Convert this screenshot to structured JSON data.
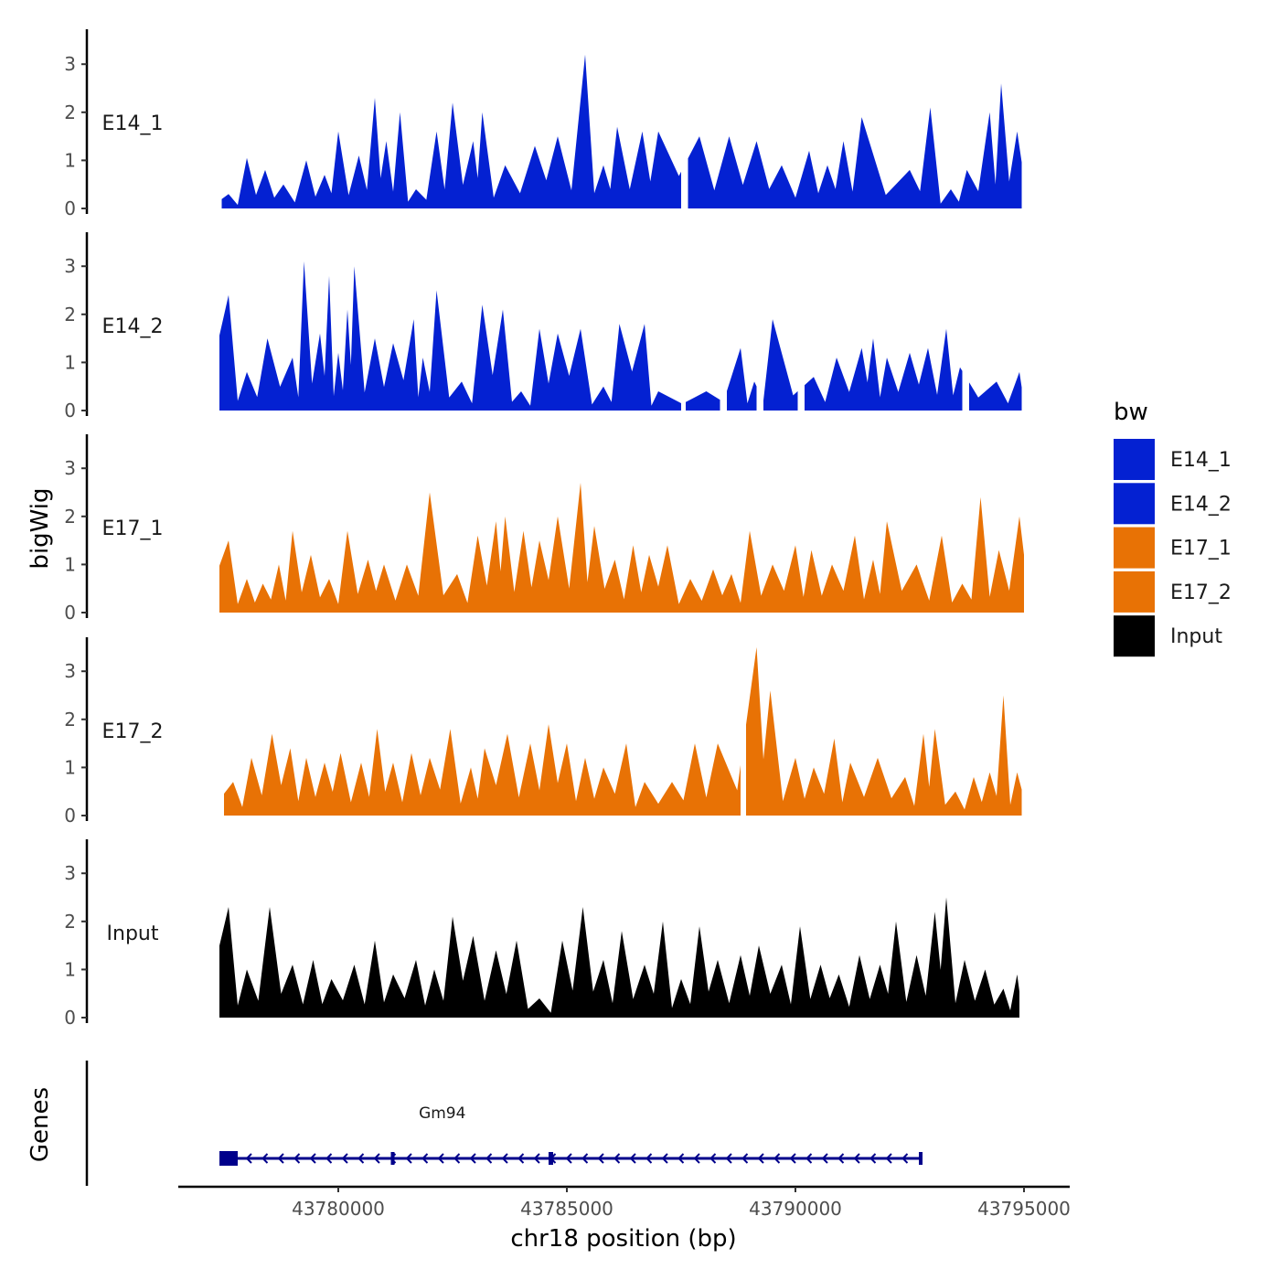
{
  "chart_data": {
    "type": "area",
    "xlabel": "chr18 position (bp)",
    "ylabel": "bigWig",
    "xlim": [
      43776500,
      43796000
    ],
    "ylim": [
      0,
      3.7
    ],
    "x_ticks": [
      43780000,
      43785000,
      43790000,
      43795000
    ],
    "x_tick_labels": [
      "43780000",
      "43785000",
      "43790000",
      "43795000"
    ],
    "y_ticks": [
      0,
      1,
      2,
      3
    ],
    "y_tick_labels": [
      "0",
      "1",
      "2",
      "3"
    ],
    "legend": {
      "title": "bw",
      "position": "right",
      "items": [
        {
          "label": "E14_1",
          "color": "#0421D2"
        },
        {
          "label": "E14_2",
          "color": "#0421D2"
        },
        {
          "label": "E17_1",
          "color": "#E87205"
        },
        {
          "label": "E17_2",
          "color": "#E87205"
        },
        {
          "label": "Input",
          "color": "#000000"
        }
      ]
    },
    "series": [
      {
        "name": "E14_1",
        "color": "#0421D2",
        "x_start": 43777450,
        "x_end": 43794950,
        "gaps": [
          [
            43787500,
            43787650
          ]
        ],
        "peaks": [
          [
            43777600,
            0.3
          ],
          [
            43778000,
            1.05
          ],
          [
            43778400,
            0.8
          ],
          [
            43778800,
            0.5
          ],
          [
            43779300,
            1.0
          ],
          [
            43779700,
            0.7
          ],
          [
            43780000,
            1.6
          ],
          [
            43780450,
            1.1
          ],
          [
            43780800,
            2.3
          ],
          [
            43781050,
            1.4
          ],
          [
            43781350,
            2.0
          ],
          [
            43781700,
            0.4
          ],
          [
            43782150,
            1.6
          ],
          [
            43782500,
            2.2
          ],
          [
            43782950,
            1.4
          ],
          [
            43783150,
            2.0
          ],
          [
            43783650,
            0.9
          ],
          [
            43784300,
            1.3
          ],
          [
            43784800,
            1.5
          ],
          [
            43785400,
            3.2
          ],
          [
            43785800,
            0.9
          ],
          [
            43786100,
            1.7
          ],
          [
            43786650,
            1.6
          ],
          [
            43787000,
            1.6
          ],
          [
            43787900,
            1.5
          ],
          [
            43788550,
            1.5
          ],
          [
            43789150,
            1.4
          ],
          [
            43789700,
            0.9
          ],
          [
            43790300,
            1.2
          ],
          [
            43790700,
            0.9
          ],
          [
            43791050,
            1.4
          ],
          [
            43791450,
            1.9
          ],
          [
            43792500,
            0.8
          ],
          [
            43792950,
            2.1
          ],
          [
            43793400,
            0.4
          ],
          [
            43793750,
            0.8
          ],
          [
            43794250,
            2.0
          ],
          [
            43794500,
            2.6
          ],
          [
            43794850,
            1.6
          ]
        ]
      },
      {
        "name": "E14_2",
        "color": "#0421D2",
        "x_start": 43777400,
        "x_end": 43794950,
        "gaps": [
          [
            43787500,
            43787600
          ],
          [
            43788350,
            43788500
          ],
          [
            43789150,
            43789300
          ],
          [
            43790050,
            43790200
          ],
          [
            43793650,
            43793800
          ]
        ],
        "peaks": [
          [
            43777600,
            2.4
          ],
          [
            43778000,
            0.8
          ],
          [
            43778450,
            1.5
          ],
          [
            43779000,
            1.1
          ],
          [
            43779250,
            3.1
          ],
          [
            43779600,
            1.6
          ],
          [
            43779800,
            2.8
          ],
          [
            43780000,
            1.2
          ],
          [
            43780200,
            2.1
          ],
          [
            43780350,
            3.0
          ],
          [
            43780800,
            1.5
          ],
          [
            43781200,
            1.4
          ],
          [
            43781650,
            1.9
          ],
          [
            43781850,
            1.1
          ],
          [
            43782150,
            2.5
          ],
          [
            43782700,
            0.6
          ],
          [
            43783150,
            2.2
          ],
          [
            43783600,
            2.1
          ],
          [
            43784000,
            0.4
          ],
          [
            43784400,
            1.7
          ],
          [
            43784800,
            1.6
          ],
          [
            43785300,
            1.7
          ],
          [
            43785800,
            0.5
          ],
          [
            43786150,
            1.8
          ],
          [
            43786700,
            1.8
          ],
          [
            43787000,
            0.4
          ],
          [
            43788050,
            0.4
          ],
          [
            43788800,
            1.3
          ],
          [
            43789100,
            0.6
          ],
          [
            43789500,
            1.9
          ],
          [
            43790400,
            0.7
          ],
          [
            43790900,
            1.1
          ],
          [
            43791450,
            1.3
          ],
          [
            43791700,
            1.5
          ],
          [
            43792000,
            1.1
          ],
          [
            43792500,
            1.2
          ],
          [
            43792900,
            1.3
          ],
          [
            43793300,
            1.7
          ],
          [
            43793600,
            0.9
          ],
          [
            43794400,
            0.6
          ],
          [
            43794900,
            0.8
          ]
        ]
      },
      {
        "name": "E17_1",
        "color": "#E87205",
        "x_start": 43777400,
        "x_end": 43795000,
        "gaps": [],
        "peaks": [
          [
            43777600,
            1.5
          ],
          [
            43778000,
            0.7
          ],
          [
            43778350,
            0.6
          ],
          [
            43778700,
            1.0
          ],
          [
            43779000,
            1.7
          ],
          [
            43779400,
            1.2
          ],
          [
            43779800,
            0.7
          ],
          [
            43780200,
            1.7
          ],
          [
            43780650,
            1.1
          ],
          [
            43781000,
            1.0
          ],
          [
            43781500,
            1.0
          ],
          [
            43782000,
            2.5
          ],
          [
            43782600,
            0.8
          ],
          [
            43783050,
            1.6
          ],
          [
            43783450,
            1.9
          ],
          [
            43783650,
            2.0
          ],
          [
            43784050,
            1.7
          ],
          [
            43784400,
            1.5
          ],
          [
            43784800,
            2.0
          ],
          [
            43785300,
            2.7
          ],
          [
            43785600,
            1.8
          ],
          [
            43786050,
            1.1
          ],
          [
            43786450,
            1.4
          ],
          [
            43786800,
            1.2
          ],
          [
            43787200,
            1.4
          ],
          [
            43787700,
            0.7
          ],
          [
            43788200,
            0.9
          ],
          [
            43788600,
            0.8
          ],
          [
            43789000,
            1.7
          ],
          [
            43789500,
            1.0
          ],
          [
            43790000,
            1.4
          ],
          [
            43790350,
            1.3
          ],
          [
            43790800,
            1.0
          ],
          [
            43791300,
            1.6
          ],
          [
            43791700,
            1.1
          ],
          [
            43792000,
            1.9
          ],
          [
            43792650,
            1.0
          ],
          [
            43793200,
            1.6
          ],
          [
            43793650,
            0.6
          ],
          [
            43794050,
            2.4
          ],
          [
            43794450,
            1.3
          ],
          [
            43794900,
            2.0
          ]
        ]
      },
      {
        "name": "E17_2",
        "color": "#E87205",
        "x_start": 43777500,
        "x_end": 43794950,
        "gaps": [
          [
            43788800,
            43788920
          ]
        ],
        "peaks": [
          [
            43777700,
            0.7
          ],
          [
            43778100,
            1.2
          ],
          [
            43778550,
            1.7
          ],
          [
            43778950,
            1.4
          ],
          [
            43779300,
            1.2
          ],
          [
            43779700,
            1.1
          ],
          [
            43780050,
            1.3
          ],
          [
            43780500,
            1.1
          ],
          [
            43780850,
            1.8
          ],
          [
            43781200,
            1.1
          ],
          [
            43781600,
            1.3
          ],
          [
            43782000,
            1.2
          ],
          [
            43782450,
            1.8
          ],
          [
            43782900,
            1.0
          ],
          [
            43783200,
            1.4
          ],
          [
            43783700,
            1.7
          ],
          [
            43784200,
            1.5
          ],
          [
            43784600,
            1.9
          ],
          [
            43785000,
            1.5
          ],
          [
            43785400,
            1.2
          ],
          [
            43785800,
            1.0
          ],
          [
            43786300,
            1.5
          ],
          [
            43786700,
            0.7
          ],
          [
            43787300,
            0.7
          ],
          [
            43787800,
            1.5
          ],
          [
            43788300,
            1.5
          ],
          [
            43789150,
            3.5
          ],
          [
            43789450,
            2.6
          ],
          [
            43790000,
            1.2
          ],
          [
            43790400,
            1.0
          ],
          [
            43790850,
            1.6
          ],
          [
            43791200,
            1.1
          ],
          [
            43791800,
            1.2
          ],
          [
            43792400,
            0.8
          ],
          [
            43792800,
            1.7
          ],
          [
            43793050,
            1.8
          ],
          [
            43793500,
            0.5
          ],
          [
            43793900,
            0.8
          ],
          [
            43794250,
            0.9
          ],
          [
            43794550,
            2.5
          ],
          [
            43794850,
            0.9
          ]
        ]
      },
      {
        "name": "Input",
        "color": "#000000",
        "x_start": 43777400,
        "x_end": 43794900,
        "gaps": [],
        "peaks": [
          [
            43777600,
            2.3
          ],
          [
            43778000,
            1.0
          ],
          [
            43778500,
            2.3
          ],
          [
            43779000,
            1.1
          ],
          [
            43779450,
            1.2
          ],
          [
            43779850,
            0.8
          ],
          [
            43780350,
            1.1
          ],
          [
            43780800,
            1.6
          ],
          [
            43781200,
            0.9
          ],
          [
            43781700,
            1.2
          ],
          [
            43782100,
            1.0
          ],
          [
            43782500,
            2.1
          ],
          [
            43782950,
            1.7
          ],
          [
            43783450,
            1.4
          ],
          [
            43783900,
            1.6
          ],
          [
            43784400,
            0.4
          ],
          [
            43784900,
            1.6
          ],
          [
            43785350,
            2.3
          ],
          [
            43785800,
            1.2
          ],
          [
            43786200,
            1.8
          ],
          [
            43786700,
            1.1
          ],
          [
            43787100,
            2.0
          ],
          [
            43787500,
            0.8
          ],
          [
            43787900,
            1.9
          ],
          [
            43788300,
            1.2
          ],
          [
            43788800,
            1.3
          ],
          [
            43789200,
            1.5
          ],
          [
            43789700,
            1.1
          ],
          [
            43790100,
            1.9
          ],
          [
            43790550,
            1.1
          ],
          [
            43790950,
            0.9
          ],
          [
            43791400,
            1.3
          ],
          [
            43791850,
            1.1
          ],
          [
            43792200,
            2.0
          ],
          [
            43792650,
            1.3
          ],
          [
            43793050,
            2.2
          ],
          [
            43793300,
            2.5
          ],
          [
            43793700,
            1.2
          ],
          [
            43794150,
            1.0
          ],
          [
            43794550,
            0.6
          ],
          [
            43794850,
            0.9
          ]
        ]
      }
    ],
    "genes_panel": {
      "ylabel": "Genes",
      "genes": [
        {
          "name": "Gm94",
          "start": 43777400,
          "end": 43792750,
          "strand": "-",
          "exons": [
            [
              43777400,
              43777800
            ],
            [
              43781150,
              43781190
            ],
            [
              43784600,
              43784700
            ],
            [
              43792700,
              43792750
            ]
          ]
        }
      ]
    }
  }
}
